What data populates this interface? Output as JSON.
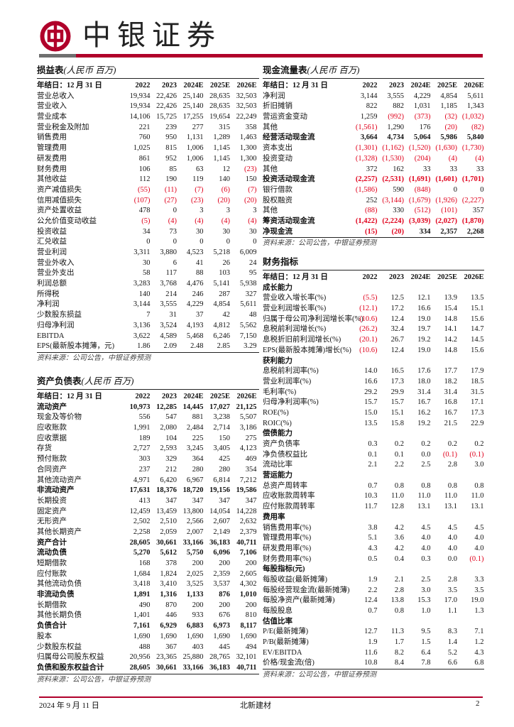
{
  "header": {
    "brand": "中银证券",
    "brand_color": "#b0002a",
    "logo_icon": "bank-of-china-logo-icon"
  },
  "years": [
    "2022",
    "2023",
    "2024E",
    "2025E",
    "2026E"
  ],
  "fiscal_label": "年结日：12 月 31 日",
  "source_note": "资料来源：公司公告，中银证券预测",
  "income": {
    "title": "损益表",
    "unit": "(人民币  百万)",
    "rows": [
      {
        "label": "营业总收入",
        "values": [
          "19,934",
          "22,426",
          "25,140",
          "28,635",
          "32,503"
        ]
      },
      {
        "label": "营业收入",
        "values": [
          "19,934",
          "22,426",
          "25,140",
          "28,635",
          "32,503"
        ]
      },
      {
        "label": "营业成本",
        "values": [
          "14,106",
          "15,725",
          "17,255",
          "19,654",
          "22,249"
        ]
      },
      {
        "label": "营业税金及附加",
        "values": [
          "221",
          "239",
          "277",
          "315",
          "358"
        ]
      },
      {
        "label": "销售费用",
        "values": [
          "760",
          "950",
          "1,131",
          "1,289",
          "1,463"
        ]
      },
      {
        "label": "管理费用",
        "values": [
          "1,025",
          "815",
          "1,006",
          "1,145",
          "1,300"
        ]
      },
      {
        "label": "研发费用",
        "values": [
          "861",
          "952",
          "1,006",
          "1,145",
          "1,300"
        ]
      },
      {
        "label": "财务费用",
        "values": [
          "106",
          "85",
          "63",
          "12",
          "(23)"
        ]
      },
      {
        "label": "其他收益",
        "values": [
          "112",
          "190",
          "119",
          "140",
          "150"
        ]
      },
      {
        "label": "资产减值损失",
        "values": [
          "(55)",
          "(11)",
          "(7)",
          "(6)",
          "(7)"
        ]
      },
      {
        "label": "信用减值损失",
        "values": [
          "(107)",
          "(27)",
          "(23)",
          "(20)",
          "(20)"
        ]
      },
      {
        "label": "资产处置收益",
        "values": [
          "478",
          "0",
          "3",
          "3",
          "3"
        ]
      },
      {
        "label": "公允价值变动收益",
        "values": [
          "(5)",
          "(4)",
          "(4)",
          "(4)",
          "(4)"
        ]
      },
      {
        "label": "投资收益",
        "values": [
          "34",
          "73",
          "30",
          "30",
          "30"
        ]
      },
      {
        "label": "汇兑收益",
        "values": [
          "0",
          "0",
          "0",
          "0",
          "0"
        ]
      },
      {
        "label": "营业利润",
        "values": [
          "3,311",
          "3,880",
          "4,523",
          "5,218",
          "6,009"
        ]
      },
      {
        "label": "营业外收入",
        "values": [
          "30",
          "6",
          "41",
          "26",
          "24"
        ]
      },
      {
        "label": "营业外支出",
        "values": [
          "58",
          "117",
          "88",
          "103",
          "95"
        ]
      },
      {
        "label": "利润总额",
        "values": [
          "3,283",
          "3,768",
          "4,476",
          "5,141",
          "5,938"
        ]
      },
      {
        "label": "所得税",
        "values": [
          "140",
          "214",
          "246",
          "287",
          "327"
        ]
      },
      {
        "label": "净利润",
        "values": [
          "3,144",
          "3,555",
          "4,229",
          "4,854",
          "5,611"
        ]
      },
      {
        "label": "少数股东损益",
        "values": [
          "7",
          "31",
          "37",
          "42",
          "48"
        ]
      },
      {
        "label": "归母净利润",
        "values": [
          "3,136",
          "3,524",
          "4,193",
          "4,812",
          "5,562"
        ]
      },
      {
        "label": "EBITDA",
        "values": [
          "3,622",
          "4,589",
          "5,468",
          "6,246",
          "7,150"
        ]
      },
      {
        "label": "EPS(最新股本摊薄，元)",
        "values": [
          "1.86",
          "2.09",
          "2.48",
          "2.85",
          "3.29"
        ]
      }
    ]
  },
  "balance": {
    "title": "资产负债表",
    "unit": "(人民币  百万)",
    "rows": [
      {
        "label": "流动资产",
        "bold": true,
        "values": [
          "10,973",
          "12,285",
          "14,445",
          "17,027",
          "21,125"
        ]
      },
      {
        "label": "现金及等价物",
        "values": [
          "556",
          "547",
          "881",
          "3,238",
          "5,507"
        ]
      },
      {
        "label": "应收账款",
        "values": [
          "1,991",
          "2,080",
          "2,484",
          "2,714",
          "3,186"
        ]
      },
      {
        "label": "应收票据",
        "values": [
          "189",
          "104",
          "225",
          "150",
          "275"
        ]
      },
      {
        "label": "存货",
        "values": [
          "2,727",
          "2,593",
          "3,245",
          "3,405",
          "4,123"
        ]
      },
      {
        "label": "预付账款",
        "values": [
          "303",
          "329",
          "364",
          "425",
          "469"
        ]
      },
      {
        "label": "合同资产",
        "values": [
          "237",
          "212",
          "280",
          "280",
          "354"
        ]
      },
      {
        "label": "其他流动资产",
        "values": [
          "4,971",
          "6,420",
          "6,967",
          "6,814",
          "7,212"
        ]
      },
      {
        "label": "非流动资产",
        "bold": true,
        "values": [
          "17,631",
          "18,376",
          "18,720",
          "19,156",
          "19,586"
        ]
      },
      {
        "label": "长期投资",
        "values": [
          "413",
          "347",
          "347",
          "347",
          "347"
        ]
      },
      {
        "label": "固定资产",
        "values": [
          "12,459",
          "13,459",
          "13,800",
          "14,054",
          "14,228"
        ]
      },
      {
        "label": "无形资产",
        "values": [
          "2,502",
          "2,510",
          "2,566",
          "2,607",
          "2,632"
        ]
      },
      {
        "label": "其他长期资产",
        "values": [
          "2,258",
          "2,059",
          "2,007",
          "2,149",
          "2,379"
        ]
      },
      {
        "label": "资产合计",
        "bold": true,
        "values": [
          "28,605",
          "30,661",
          "33,166",
          "36,183",
          "40,711"
        ]
      },
      {
        "label": "流动负债",
        "bold": true,
        "values": [
          "5,270",
          "5,612",
          "5,750",
          "6,096",
          "7,106"
        ]
      },
      {
        "label": "短期借款",
        "values": [
          "168",
          "378",
          "200",
          "200",
          "200"
        ]
      },
      {
        "label": "应付账款",
        "values": [
          "1,684",
          "1,824",
          "2,025",
          "2,359",
          "2,605"
        ]
      },
      {
        "label": "其他流动负债",
        "values": [
          "3,418",
          "3,410",
          "3,525",
          "3,537",
          "4,302"
        ]
      },
      {
        "label": "非流动负债",
        "bold": true,
        "values": [
          "1,891",
          "1,316",
          "1,133",
          "876",
          "1,010"
        ]
      },
      {
        "label": "长期借款",
        "values": [
          "490",
          "870",
          "200",
          "200",
          "200"
        ]
      },
      {
        "label": "其他长期负债",
        "values": [
          "1,401",
          "446",
          "933",
          "676",
          "810"
        ]
      },
      {
        "label": "负债合计",
        "bold": true,
        "values": [
          "7,161",
          "6,929",
          "6,883",
          "6,973",
          "8,117"
        ]
      },
      {
        "label": "股本",
        "values": [
          "1,690",
          "1,690",
          "1,690",
          "1,690",
          "1,690"
        ]
      },
      {
        "label": "少数股东权益",
        "values": [
          "488",
          "367",
          "403",
          "445",
          "494"
        ]
      },
      {
        "label": "归属母公司股东权益",
        "values": [
          "20,956",
          "23,365",
          "25,880",
          "28,765",
          "32,101"
        ]
      },
      {
        "label": "负债和股东权益合计",
        "bold": true,
        "values": [
          "28,605",
          "30,661",
          "33,166",
          "36,183",
          "40,711"
        ]
      }
    ]
  },
  "cashflow": {
    "title": "现金流量表",
    "unit": "(人民币  百万)",
    "rows": [
      {
        "label": "净利润",
        "values": [
          "3,144",
          "3,555",
          "4,229",
          "4,854",
          "5,611"
        ]
      },
      {
        "label": "折旧摊销",
        "values": [
          "822",
          "882",
          "1,031",
          "1,185",
          "1,343"
        ]
      },
      {
        "label": "营运资金变动",
        "values": [
          "1,259",
          "(992)",
          "(373)",
          "(32)",
          "(1,032)"
        ]
      },
      {
        "label": "其他",
        "values": [
          "(1,561)",
          "1,290",
          "176",
          "(20)",
          "(82)"
        ]
      },
      {
        "label": "经营活动现金流",
        "bold": true,
        "values": [
          "3,664",
          "4,734",
          "5,064",
          "5,986",
          "5,840"
        ]
      },
      {
        "label": "资本支出",
        "values": [
          "(1,301)",
          "(1,162)",
          "(1,520)",
          "(1,630)",
          "(1,730)"
        ]
      },
      {
        "label": "投资变动",
        "values": [
          "(1,328)",
          "(1,530)",
          "(204)",
          "(4)",
          "(4)"
        ]
      },
      {
        "label": "其他",
        "values": [
          "372",
          "162",
          "33",
          "33",
          "33"
        ]
      },
      {
        "label": "投资活动现金流",
        "bold": true,
        "values": [
          "(2,257)",
          "(2,531)",
          "(1,691)",
          "(1,601)",
          "(1,701)"
        ]
      },
      {
        "label": "银行借款",
        "values": [
          "(1,586)",
          "590",
          "(848)",
          "0",
          "0"
        ]
      },
      {
        "label": "股权融资",
        "values": [
          "252",
          "(3,144)",
          "(1,679)",
          "(1,926)",
          "(2,227)"
        ]
      },
      {
        "label": "其他",
        "values": [
          "(88)",
          "330",
          "(512)",
          "(101)",
          "357"
        ]
      },
      {
        "label": "筹资活动现金流",
        "bold": true,
        "values": [
          "(1,422)",
          "(2,224)",
          "(3,039)",
          "(2,027)",
          "(1,870)"
        ]
      },
      {
        "label": "净现金流",
        "bold": true,
        "values": [
          "(15)",
          "(20)",
          "334",
          "2,357",
          "2,268"
        ]
      }
    ]
  },
  "ratios": {
    "title": "财务指标",
    "rows": [
      {
        "label": "成长能力",
        "bold": true,
        "values": []
      },
      {
        "label": "营业收入增长率(%)",
        "values": [
          "(5.5)",
          "12.5",
          "12.1",
          "13.9",
          "13.5"
        ]
      },
      {
        "label": "营业利润增长率(%)",
        "values": [
          "(12.1)",
          "17.2",
          "16.6",
          "15.4",
          "15.1"
        ]
      },
      {
        "label": "归属于母公司净利润增长率(%)",
        "values": [
          "(10.6)",
          "12.4",
          "19.0",
          "14.8",
          "15.6"
        ]
      },
      {
        "label": "息税前利润增长(%)",
        "values": [
          "(26.2)",
          "32.4",
          "19.7",
          "14.1",
          "14.7"
        ]
      },
      {
        "label": "息税折旧前利润增长(%)",
        "values": [
          "(20.1)",
          "26.7",
          "19.2",
          "14.2",
          "14.5"
        ]
      },
      {
        "label": "EPS(最新股本摊薄)增长(%)",
        "values": [
          "(10.6)",
          "12.4",
          "19.0",
          "14.8",
          "15.6"
        ]
      },
      {
        "label": "获利能力",
        "bold": true,
        "values": []
      },
      {
        "label": "息税前利润率(%)",
        "values": [
          "14.0",
          "16.5",
          "17.6",
          "17.7",
          "17.9"
        ]
      },
      {
        "label": "营业利润率(%)",
        "values": [
          "16.6",
          "17.3",
          "18.0",
          "18.2",
          "18.5"
        ]
      },
      {
        "label": "毛利率(%)",
        "values": [
          "29.2",
          "29.9",
          "31.4",
          "31.4",
          "31.5"
        ]
      },
      {
        "label": "归母净利润率(%)",
        "values": [
          "15.7",
          "15.7",
          "16.7",
          "16.8",
          "17.1"
        ]
      },
      {
        "label": "ROE(%)",
        "values": [
          "15.0",
          "15.1",
          "16.2",
          "16.7",
          "17.3"
        ]
      },
      {
        "label": "ROIC(%)",
        "values": [
          "13.5",
          "15.8",
          "19.2",
          "21.5",
          "22.9"
        ]
      },
      {
        "label": "偿债能力",
        "bold": true,
        "values": []
      },
      {
        "label": "资产负债率",
        "values": [
          "0.3",
          "0.2",
          "0.2",
          "0.2",
          "0.2"
        ]
      },
      {
        "label": "净负债权益比",
        "values": [
          "0.1",
          "0.1",
          "0.0",
          "(0.1)",
          "(0.1)"
        ]
      },
      {
        "label": "流动比率",
        "values": [
          "2.1",
          "2.2",
          "2.5",
          "2.8",
          "3.0"
        ]
      },
      {
        "label": "营运能力",
        "bold": true,
        "values": []
      },
      {
        "label": "总资产周转率",
        "values": [
          "0.7",
          "0.8",
          "0.8",
          "0.8",
          "0.8"
        ]
      },
      {
        "label": "应收账款周转率",
        "values": [
          "10.3",
          "11.0",
          "11.0",
          "11.0",
          "11.0"
        ]
      },
      {
        "label": "应付账款周转率",
        "values": [
          "11.7",
          "12.8",
          "13.1",
          "13.1",
          "13.1"
        ]
      },
      {
        "label": "费用率",
        "bold": true,
        "values": []
      },
      {
        "label": "销售费用率(%)",
        "values": [
          "3.8",
          "4.2",
          "4.5",
          "4.5",
          "4.5"
        ]
      },
      {
        "label": "管理费用率(%)",
        "values": [
          "5.1",
          "3.6",
          "4.0",
          "4.0",
          "4.0"
        ]
      },
      {
        "label": "研发费用率(%)",
        "values": [
          "4.3",
          "4.2",
          "4.0",
          "4.0",
          "4.0"
        ]
      },
      {
        "label": "财务费用率(%)",
        "values": [
          "0.5",
          "0.4",
          "0.3",
          "0.0",
          "(0.1)"
        ]
      },
      {
        "label": "每股指标(元)",
        "bold": true,
        "values": []
      },
      {
        "label": "每股收益(最新摊薄)",
        "values": [
          "1.9",
          "2.1",
          "2.5",
          "2.8",
          "3.3"
        ]
      },
      {
        "label": "每股经营现金流(最新摊薄)",
        "values": [
          "2.2",
          "2.8",
          "3.0",
          "3.5",
          "3.5"
        ]
      },
      {
        "label": "每股净资产(最新摊薄)",
        "values": [
          "12.4",
          "13.8",
          "15.3",
          "17.0",
          "19.0"
        ]
      },
      {
        "label": "每股股息",
        "values": [
          "0.7",
          "0.8",
          "1.0",
          "1.1",
          "1.3"
        ]
      },
      {
        "label": "估值比率",
        "bold": true,
        "values": []
      },
      {
        "label": "P/E(最新摊薄)",
        "values": [
          "12.7",
          "11.3",
          "9.5",
          "8.3",
          "7.1"
        ]
      },
      {
        "label": "P/B(最新摊薄)",
        "values": [
          "1.9",
          "1.7",
          "1.5",
          "1.4",
          "1.2"
        ]
      },
      {
        "label": "EV/EBITDA",
        "values": [
          "11.6",
          "8.2",
          "6.4",
          "5.2",
          "4.3"
        ]
      },
      {
        "label": "价格/现金流(倍)",
        "values": [
          "10.8",
          "8.4",
          "7.8",
          "6.6",
          "6.8"
        ]
      }
    ]
  },
  "footer": {
    "date": "2024 年 9 月 11 日",
    "company": "北新建材",
    "page": "2"
  }
}
